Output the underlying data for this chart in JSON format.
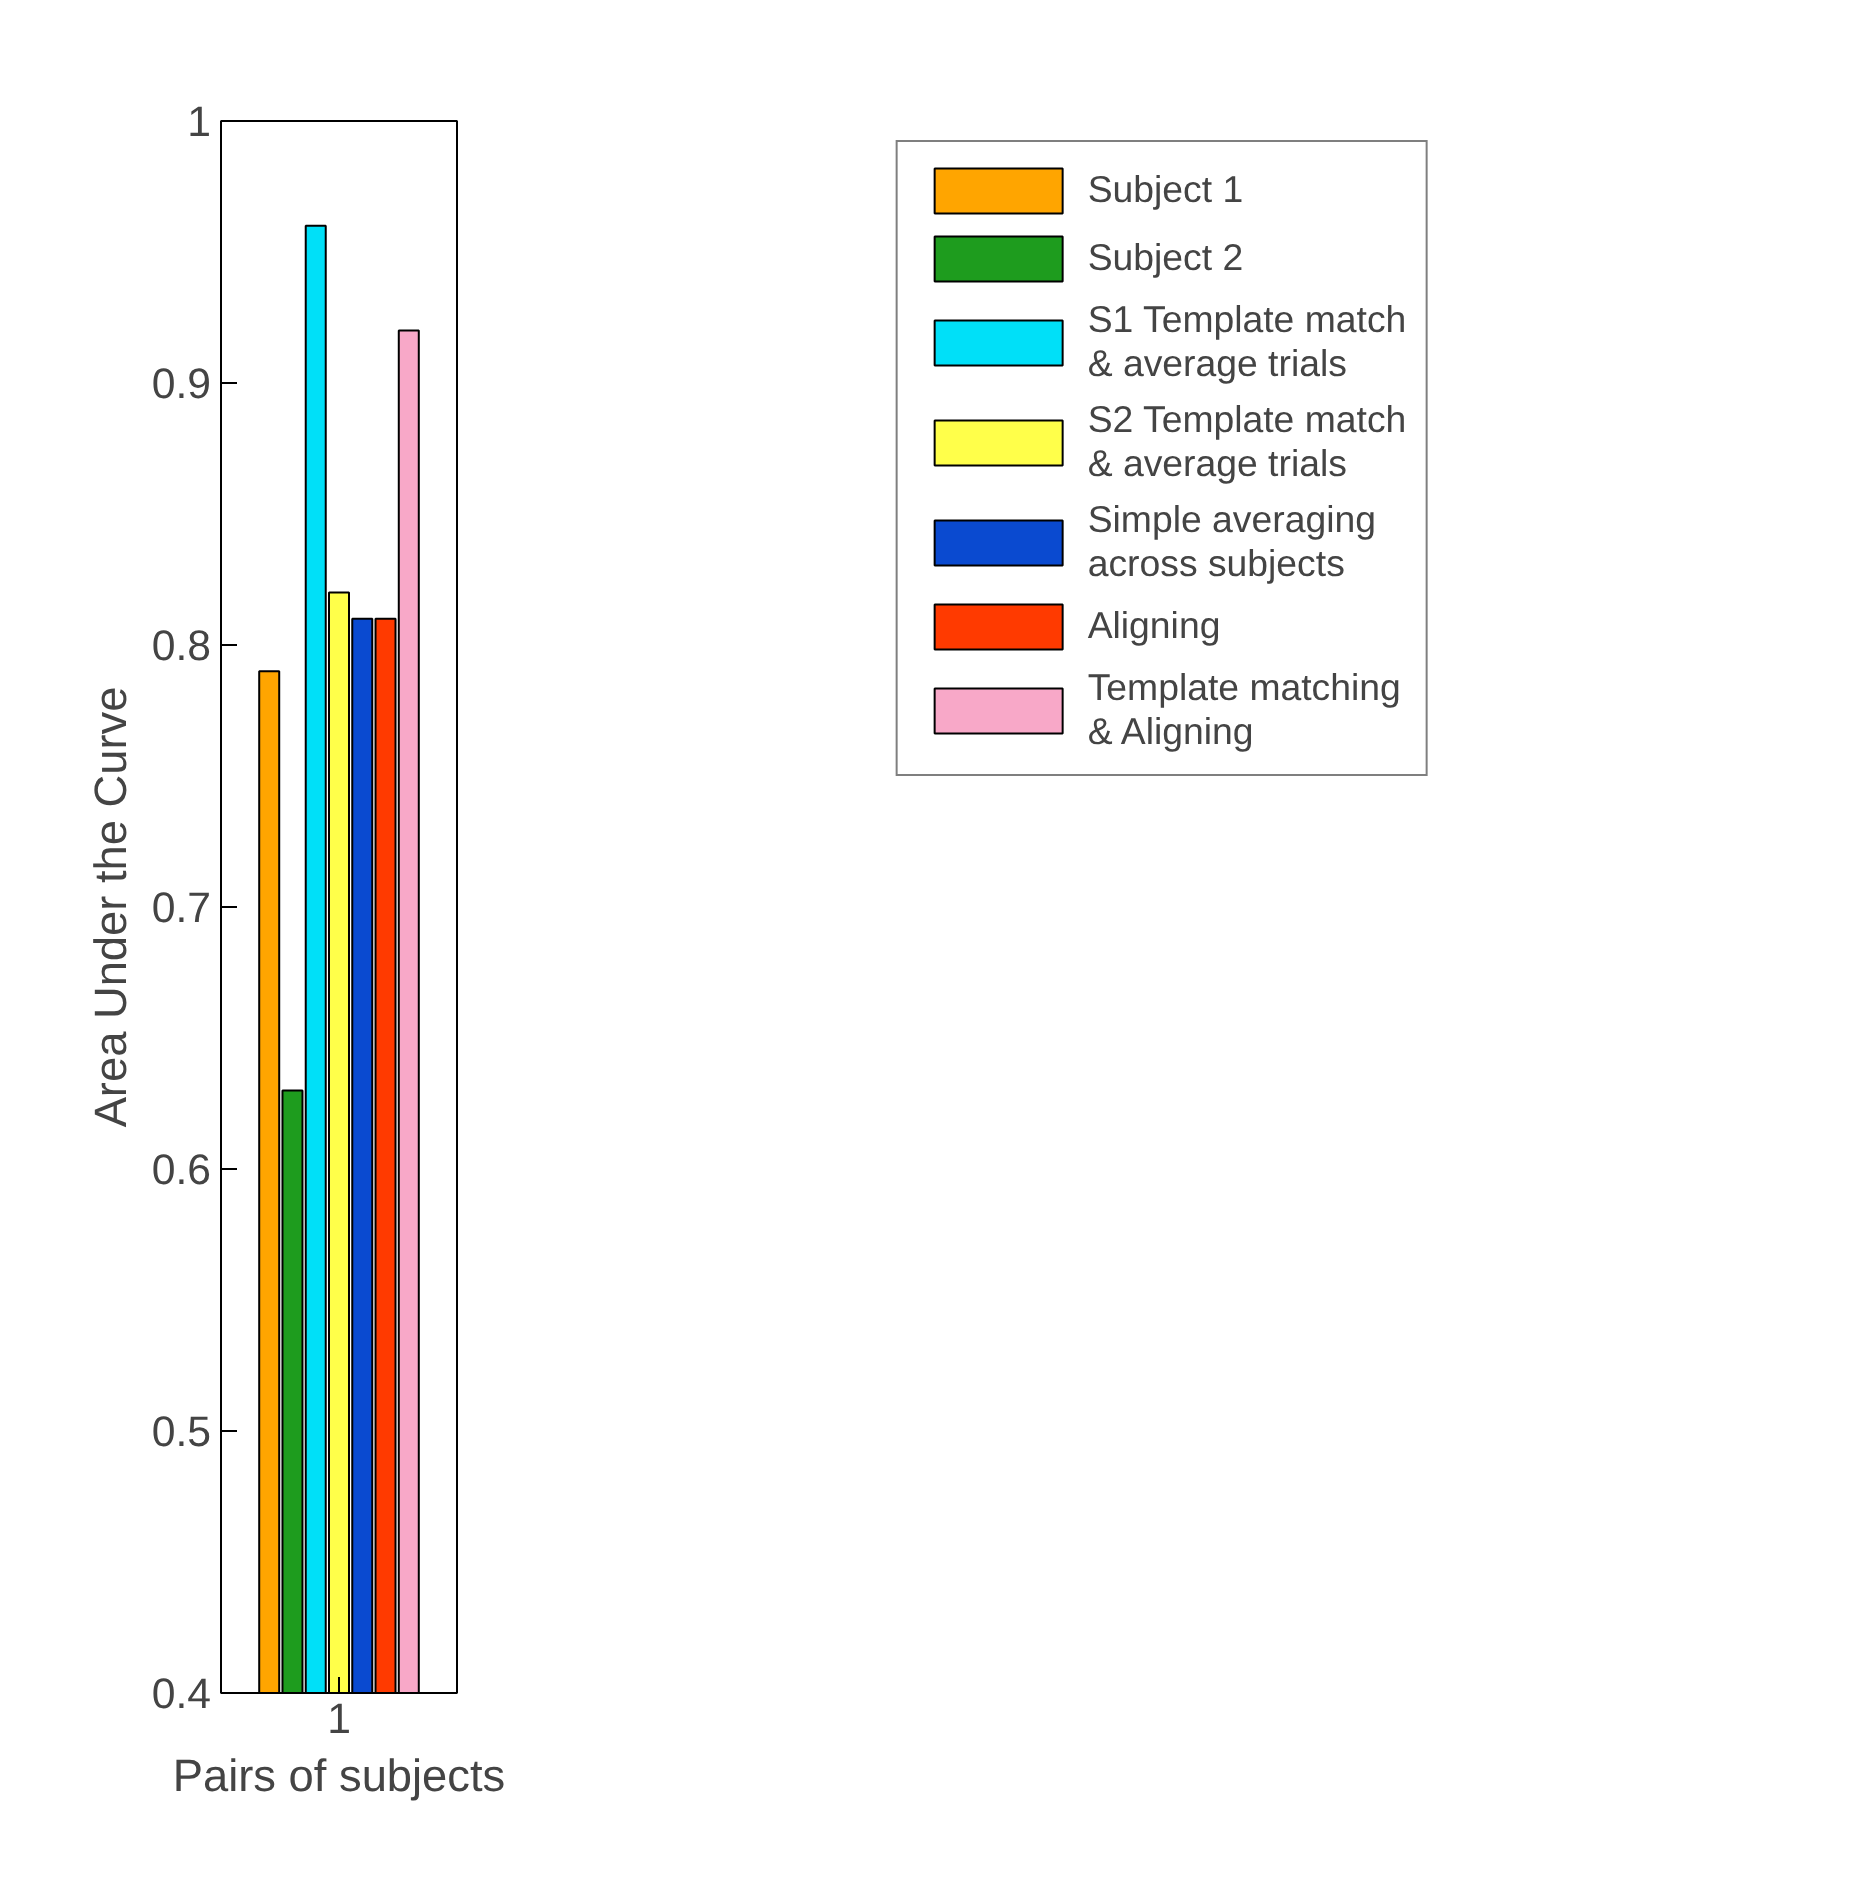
{
  "chart_data": {
    "type": "bar",
    "xlabel": "Pairs of subjects",
    "ylabel": "Area Under the Curve",
    "categories": [
      "1"
    ],
    "ylim": [
      0.4,
      1
    ],
    "yticks": [
      0.4,
      0.5,
      0.6,
      0.7,
      0.8,
      0.9,
      1
    ],
    "grid": false,
    "legend": "top right",
    "series": [
      {
        "name": "Subject 1",
        "color": "#ffa500",
        "values": [
          0.79
        ]
      },
      {
        "name": "Subject 2",
        "color": "#1e9c1e",
        "values": [
          0.63
        ]
      },
      {
        "name": "S1 Template match\n& average trials",
        "color": "#00e0f8",
        "values": [
          0.96
        ]
      },
      {
        "name": "S2 Template match\n& average trials",
        "color": "#ffff4a",
        "values": [
          0.82
        ]
      },
      {
        "name": "Simple averaging\nacross subjects",
        "color": "#0a4ad0",
        "values": [
          0.81
        ]
      },
      {
        "name": "Aligning",
        "color": "#ff3a00",
        "values": [
          0.81
        ]
      },
      {
        "name": "Template matching\n& Aligning",
        "color": "#f8a8c8",
        "values": [
          0.92
        ]
      }
    ]
  }
}
